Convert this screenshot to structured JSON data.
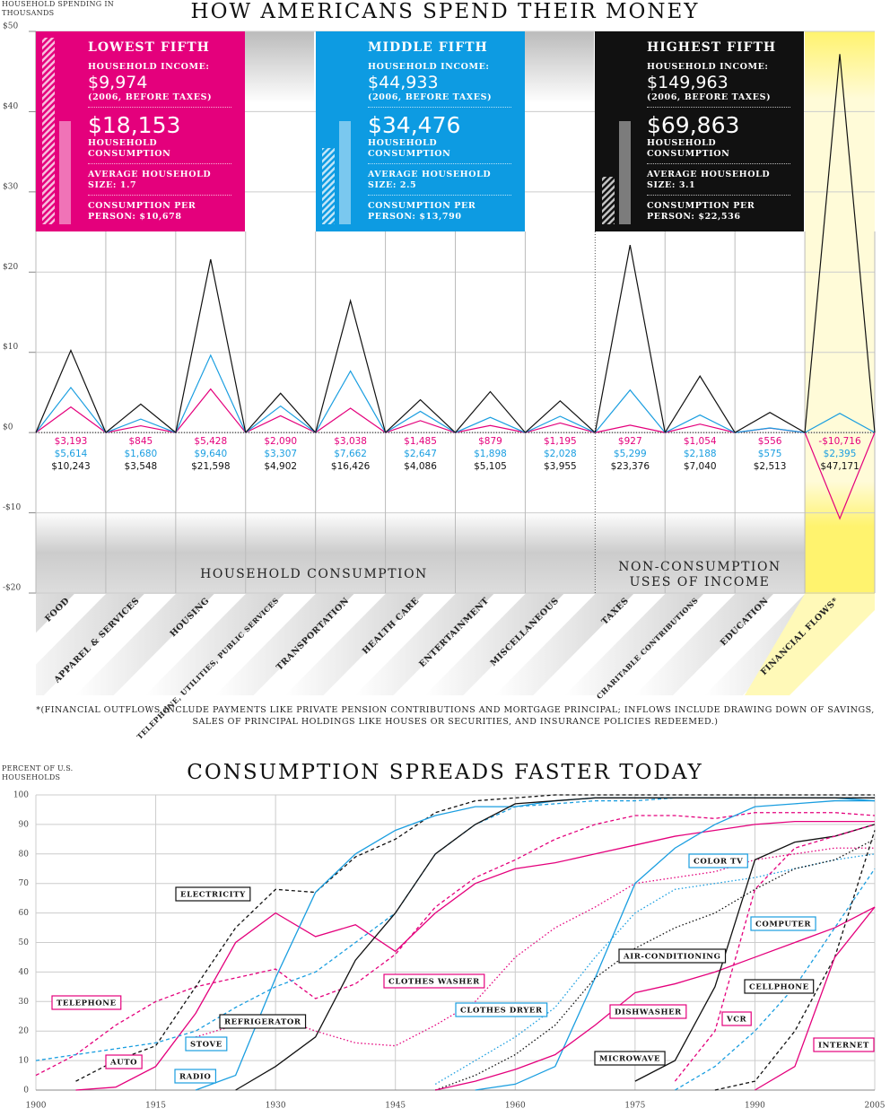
{
  "chart_data": [
    {
      "type": "line",
      "title": "HOW AMERICANS SPEND THEIR MONEY",
      "y_label": "HOUSEHOLD SPENDING IN THOUSANDS",
      "categories": [
        "FOOD",
        "APPAREL & SERVICES",
        "HOUSING",
        "TELEPHONE, UTILITIES, PUBLIC SERVICES",
        "TRANSPORTATION",
        "HEALTH CARE",
        "ENTERTAINMENT",
        "MISCELLANEOUS",
        "TAXES",
        "CHARITABLE CONTRIBUTIONS",
        "EDUCATION",
        "FINANCIAL FLOWS*"
      ],
      "series": [
        {
          "name": "LOWEST FIFTH",
          "color": "#e4007c",
          "values": [
            3.193,
            0.845,
            5.428,
            2.09,
            3.038,
            1.485,
            0.879,
            1.195,
            0.927,
            1.054,
            0.556,
            -10.716
          ],
          "value_labels": [
            "$3,193",
            "$845",
            "$5,428",
            "$2,090",
            "$3,038",
            "$1,485",
            "$879",
            "$1,195",
            "$927",
            "$1,054",
            "$556",
            "-$10,716"
          ]
        },
        {
          "name": "MIDDLE FIFTH",
          "color": "#1a9ee0",
          "values": [
            5.614,
            1.68,
            9.64,
            3.307,
            7.662,
            2.647,
            1.898,
            2.028,
            5.299,
            2.188,
            0.575,
            2.395
          ],
          "value_labels": [
            "$5,614",
            "$1,680",
            "$9,640",
            "$3,307",
            "$7,662",
            "$2,647",
            "$1,898",
            "$2,028",
            "$5,299",
            "$2,188",
            "$575",
            "$2,395"
          ]
        },
        {
          "name": "HIGHEST FIFTH",
          "color": "#111111",
          "values": [
            10.243,
            3.548,
            21.598,
            4.902,
            16.426,
            4.086,
            5.105,
            3.955,
            23.376,
            7.04,
            2.513,
            47.171
          ],
          "value_labels": [
            "$10,243",
            "$3,548",
            "$21,598",
            "$4,902",
            "$16,426",
            "$4,086",
            "$5,105",
            "$3,955",
            "$23,376",
            "$7,040",
            "$2,513",
            "$47,171"
          ]
        }
      ],
      "panels": [
        {
          "income_label": "HOUSEHOLD INCOME:",
          "income": "$9,974",
          "income_note": "(2006, BEFORE TAXES)",
          "consumption": "$18,153",
          "consumption_label": "HOUSEHOLD CONSUMPTION",
          "size": "AVERAGE HOUSEHOLD SIZE: 1.7",
          "per_person": "CONSUMPTION PER PERSON: $10,678"
        },
        {
          "income_label": "HOUSEHOLD INCOME:",
          "income": "$44,933",
          "income_note": "(2006, BEFORE TAXES)",
          "consumption": "$34,476",
          "consumption_label": "HOUSEHOLD CONSUMPTION",
          "size": "AVERAGE HOUSEHOLD SIZE: 2.5",
          "per_person": "CONSUMPTION PER PERSON: $13,790"
        },
        {
          "income_label": "HOUSEHOLD INCOME:",
          "income": "$149,963",
          "income_note": "(2006, BEFORE TAXES)",
          "consumption": "$69,863",
          "consumption_label": "HOUSEHOLD CONSUMPTION",
          "size": "AVERAGE HOUSEHOLD SIZE: 3.1",
          "per_person": "CONSUMPTION PER PERSON: $22,536"
        }
      ],
      "group_labels": [
        "HOUSEHOLD CONSUMPTION",
        "NON-CONSUMPTION USES OF INCOME"
      ],
      "footnote": "*(FINANCIAL OUTFLOWS INCLUDE PAYMENTS LIKE PRIVATE PENSION CONTRIBUTIONS AND MORTGAGE PRINCIPAL; INFLOWS INCLUDE DRAWING DOWN OF SAVINGS, SALES OF PRINCIPAL HOLDINGS LIKE HOUSES OR SECURITIES, AND INSURANCE POLICIES REDEEMED.)",
      "ylim": [
        -20,
        50
      ],
      "yticks": [
        {
          "value": 50,
          "label": "$50"
        },
        {
          "value": 40,
          "label": "$40"
        },
        {
          "value": 30,
          "label": "$30"
        },
        {
          "value": 20,
          "label": "$20"
        },
        {
          "value": 10,
          "label": "$10"
        },
        {
          "value": 0,
          "label": "$0"
        },
        {
          "value": -10,
          "label": "-$10"
        },
        {
          "value": -20,
          "label": "-$20"
        }
      ],
      "grid": true
    },
    {
      "type": "line",
      "title": "CONSUMPTION SPREADS FASTER TODAY",
      "y_label": "PERCENT OF U.S. HOUSEHOLDS",
      "x": [
        1900,
        1905,
        1910,
        1915,
        1920,
        1925,
        1930,
        1935,
        1940,
        1945,
        1950,
        1955,
        1960,
        1965,
        1970,
        1975,
        1980,
        1985,
        1990,
        1995,
        2000,
        2005
      ],
      "xlim": [
        1900,
        2005
      ],
      "xticks": [
        1900,
        1915,
        1930,
        1945,
        1960,
        1975,
        1990,
        2005
      ],
      "ylim": [
        0,
        100
      ],
      "yticks": [
        0,
        10,
        20,
        30,
        40,
        50,
        60,
        70,
        80,
        90,
        100
      ],
      "grid": true,
      "series": [
        {
          "name": "TELEPHONE",
          "color": "#e4007c",
          "dash": "dashed",
          "values": [
            5,
            12,
            22,
            30,
            35,
            38,
            41,
            31,
            36,
            46,
            62,
            72,
            78,
            85,
            90,
            93,
            93,
            92,
            94,
            94,
            94,
            93
          ]
        },
        {
          "name": "ELECTRICITY",
          "color": "#111111",
          "dash": "dashed",
          "values": [
            null,
            3,
            10,
            15,
            35,
            55,
            68,
            67,
            79,
            85,
            94,
            98,
            99,
            100,
            100,
            100,
            100,
            100,
            100,
            100,
            100,
            100
          ]
        },
        {
          "name": "AUTO",
          "color": "#e4007c",
          "dash": "solid",
          "values": [
            null,
            0,
            1,
            8,
            26,
            50,
            60,
            52,
            56,
            47,
            60,
            70,
            75,
            77,
            80,
            83,
            86,
            88,
            90,
            91,
            91,
            91
          ]
        },
        {
          "name": "RADIO",
          "color": "#1a9ee0",
          "dash": "solid",
          "values": [
            null,
            null,
            null,
            null,
            0,
            5,
            38,
            67,
            80,
            88,
            93,
            96,
            96,
            98,
            99,
            99,
            99,
            99,
            99,
            99,
            99,
            98
          ]
        },
        {
          "name": "STOVE",
          "color": "#1a9ee0",
          "dash": "dashed",
          "values": [
            10,
            12,
            14,
            16,
            20,
            28,
            35,
            40,
            50,
            60,
            80,
            90,
            96,
            97,
            98,
            98,
            99,
            99,
            99,
            99,
            99,
            99
          ]
        },
        {
          "name": "REFRIGERATOR",
          "color": "#111111",
          "dash": "solid",
          "values": [
            null,
            null,
            null,
            null,
            null,
            0,
            8,
            18,
            44,
            60,
            80,
            90,
            97,
            98,
            99,
            99,
            99,
            99,
            99,
            99,
            99,
            99
          ]
        },
        {
          "name": "CLOTHES WASHER",
          "color": "#e4007c",
          "dash": "dotted",
          "values": [
            null,
            null,
            null,
            null,
            18,
            22,
            25,
            20,
            16,
            15,
            22,
            30,
            45,
            55,
            62,
            70,
            72,
            74,
            78,
            80,
            82,
            82
          ]
        },
        {
          "name": "CLOTHES DRYER",
          "color": "#1a9ee0",
          "dash": "dotted",
          "values": [
            null,
            null,
            null,
            null,
            null,
            null,
            null,
            null,
            null,
            null,
            2,
            10,
            18,
            28,
            45,
            60,
            68,
            70,
            72,
            75,
            78,
            80
          ]
        },
        {
          "name": "COLOR TV",
          "color": "#1a9ee0",
          "dash": "solid",
          "values": [
            null,
            null,
            null,
            null,
            null,
            null,
            null,
            null,
            null,
            null,
            null,
            0,
            2,
            8,
            38,
            70,
            82,
            90,
            96,
            97,
            98,
            98
          ]
        },
        {
          "name": "AIR-CONDITIONING",
          "color": "#111111",
          "dash": "dotted",
          "values": [
            null,
            null,
            null,
            null,
            null,
            null,
            null,
            null,
            null,
            null,
            0,
            5,
            12,
            22,
            38,
            48,
            55,
            60,
            68,
            75,
            78,
            85
          ]
        },
        {
          "name": "DISHWASHER",
          "color": "#e4007c",
          "dash": "solid",
          "values": [
            null,
            null,
            null,
            null,
            null,
            null,
            null,
            null,
            null,
            null,
            0,
            3,
            7,
            12,
            22,
            33,
            36,
            40,
            45,
            50,
            55,
            62
          ]
        },
        {
          "name": "MICROWAVE",
          "color": "#111111",
          "dash": "solid",
          "values": [
            null,
            null,
            null,
            null,
            null,
            null,
            null,
            null,
            null,
            null,
            null,
            null,
            null,
            null,
            null,
            3,
            10,
            35,
            78,
            84,
            86,
            90
          ]
        },
        {
          "name": "COMPUTER",
          "color": "#1a9ee0",
          "dash": "dashed",
          "values": [
            null,
            null,
            null,
            null,
            null,
            null,
            null,
            null,
            null,
            null,
            null,
            null,
            null,
            null,
            null,
            null,
            0,
            8,
            20,
            35,
            55,
            75
          ]
        },
        {
          "name": "VCR",
          "color": "#e4007c",
          "dash": "dashed",
          "values": [
            null,
            null,
            null,
            null,
            null,
            null,
            null,
            null,
            null,
            null,
            null,
            null,
            null,
            null,
            null,
            null,
            3,
            20,
            68,
            82,
            86,
            90
          ]
        },
        {
          "name": "CELLPHONE",
          "color": "#111111",
          "dash": "dashed",
          "values": [
            null,
            null,
            null,
            null,
            null,
            null,
            null,
            null,
            null,
            null,
            null,
            null,
            null,
            null,
            null,
            null,
            null,
            0,
            3,
            20,
            45,
            88
          ]
        },
        {
          "name": "INTERNET",
          "color": "#e4007c",
          "dash": "solid",
          "values": [
            null,
            null,
            null,
            null,
            null,
            null,
            null,
            null,
            null,
            null,
            null,
            null,
            null,
            null,
            null,
            null,
            null,
            null,
            0,
            8,
            45,
            62
          ]
        }
      ]
    }
  ]
}
